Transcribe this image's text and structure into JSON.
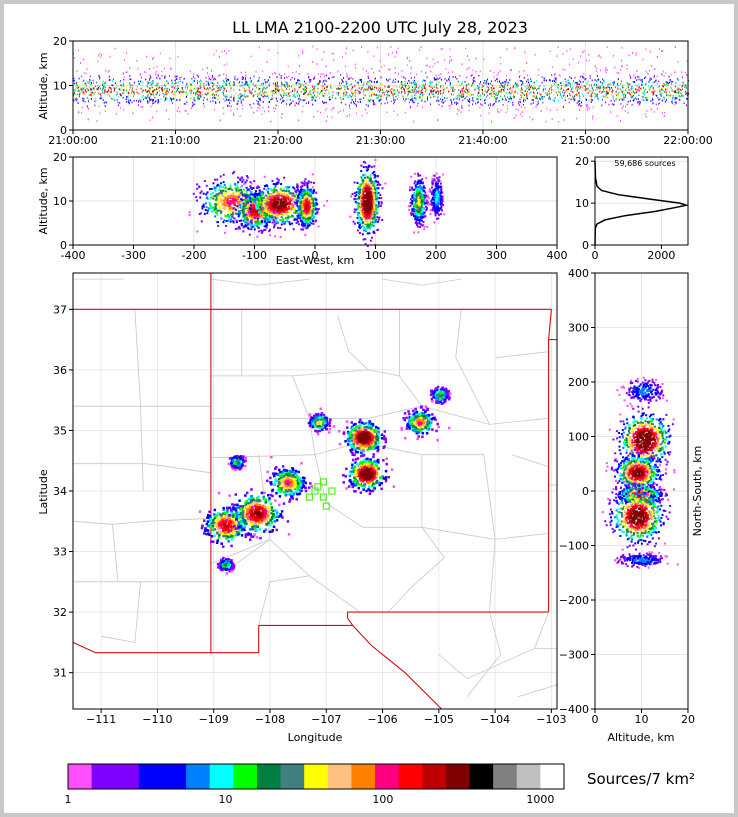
{
  "title": "LL LMA 2100-2200 UTC July 28, 2023",
  "time_panel": {
    "ylabel": "Altitude, km",
    "y_ticks": [
      "0",
      "10",
      "20"
    ],
    "x_ticks": [
      "21:00:00",
      "21:10:00",
      "21:20:00",
      "21:30:00",
      "21:40:00",
      "21:50:00",
      "22:00:00"
    ]
  },
  "ew_panel": {
    "ylabel": "Altitude, km",
    "xlabel": "East-West, km",
    "x_ticks": [
      "-400",
      "-300",
      "-200",
      "-100",
      "0",
      "100",
      "200",
      "300",
      "400"
    ],
    "y_ticks": [
      "0",
      "10",
      "20"
    ]
  },
  "hist_panel": {
    "sources_label": "59,686 sources",
    "x_ticks": [
      "0",
      "2000"
    ],
    "y_ticks": [
      "0",
      "10",
      "20"
    ]
  },
  "map_panel": {
    "xlabel": "Longitude",
    "ylabel": "Latitude",
    "x_ticks": [
      "−111",
      "−110",
      "−109",
      "−108",
      "−107",
      "−106",
      "−105",
      "−104",
      "−103"
    ],
    "y_ticks": [
      "31",
      "32",
      "33",
      "34",
      "35",
      "36",
      "37"
    ]
  },
  "ns_panel": {
    "xlabel": "Altitude, km",
    "ylabel": "North-South, km",
    "x_ticks": [
      "0",
      "10",
      "20"
    ],
    "y_ticks": [
      "−400",
      "−300",
      "−200",
      "−100",
      "0",
      "100",
      "200",
      "300",
      "400"
    ]
  },
  "colorbar": {
    "label": "Sources/7 km²",
    "ticks": [
      "1",
      "10",
      "100",
      "1000"
    ],
    "colors": [
      "#ff4dff",
      "#8000ff",
      "#8000ff",
      "#0000ff",
      "#0000ff",
      "#0080ff",
      "#00ffff",
      "#00ff00",
      "#008040",
      "#408080",
      "#ffff00",
      "#ffc080",
      "#ff8000",
      "#ff0080",
      "#ff0000",
      "#c00000",
      "#800000",
      "#000000",
      "#808080",
      "#c0c0c0",
      "#ffffff"
    ]
  },
  "chart_data": [
    {
      "type": "scatter",
      "name": "altitude-time",
      "x_range": [
        "21:00:00",
        "22:00:00"
      ],
      "ylim": [
        0,
        20
      ],
      "band_center_km": 9,
      "band_core_km": [
        6,
        12
      ],
      "band_extent_km": [
        2,
        19
      ]
    },
    {
      "type": "heatmap",
      "name": "east-west-altitude",
      "xlim": [
        -400,
        400
      ],
      "ylim": [
        0,
        20
      ],
      "cells": [
        {
          "x": -140,
          "z": 10,
          "sx": 25,
          "sz": 2.5,
          "w": 0.7
        },
        {
          "x": -100,
          "z": 8,
          "sx": 15,
          "sz": 2.0,
          "w": 0.8
        },
        {
          "x": -60,
          "z": 9.5,
          "sx": 22,
          "sz": 2.2,
          "w": 0.9
        },
        {
          "x": -15,
          "z": 9,
          "sx": 8,
          "sz": 2.2,
          "w": 0.8
        },
        {
          "x": 85,
          "z": 10,
          "sx": 9,
          "sz": 3.5,
          "w": 1.0
        },
        {
          "x": 170,
          "z": 10,
          "sx": 6,
          "sz": 2.5,
          "w": 0.55
        },
        {
          "x": 200,
          "z": 11,
          "sx": 5,
          "sz": 2.2,
          "w": 0.35
        }
      ]
    },
    {
      "type": "line",
      "name": "altitude-histogram",
      "xlim": [
        0,
        2800
      ],
      "ylim": [
        0,
        20
      ],
      "points": [
        [
          0,
          0
        ],
        [
          10,
          4
        ],
        [
          60,
          5
        ],
        [
          300,
          6
        ],
        [
          900,
          7
        ],
        [
          1800,
          8
        ],
        [
          2450,
          9
        ],
        [
          2750,
          9.5
        ],
        [
          2550,
          10
        ],
        [
          1600,
          11
        ],
        [
          700,
          12
        ],
        [
          200,
          13
        ],
        [
          60,
          14
        ],
        [
          15,
          16
        ],
        [
          0,
          20
        ]
      ]
    },
    {
      "type": "heatmap",
      "name": "plan-view-map",
      "xlim": [
        -111.5,
        -102.9
      ],
      "ylim": [
        30.4,
        37.6
      ],
      "cells": [
        {
          "lon": -108.8,
          "lat": 33.45,
          "s": 0.18,
          "w": 0.8
        },
        {
          "lon": -108.25,
          "lat": 33.65,
          "s": 0.2,
          "w": 0.85
        },
        {
          "lon": -107.7,
          "lat": 34.15,
          "s": 0.15,
          "w": 0.7
        },
        {
          "lon": -107.15,
          "lat": 35.15,
          "s": 0.08,
          "w": 0.6
        },
        {
          "lon": -106.35,
          "lat": 34.9,
          "s": 0.15,
          "w": 1.0
        },
        {
          "lon": -106.3,
          "lat": 34.3,
          "s": 0.15,
          "w": 1.0
        },
        {
          "lon": -105.35,
          "lat": 35.15,
          "s": 0.12,
          "w": 0.7
        },
        {
          "lon": -105.0,
          "lat": 35.6,
          "s": 0.07,
          "w": 0.5
        },
        {
          "lon": -108.6,
          "lat": 34.5,
          "s": 0.06,
          "w": 0.5
        },
        {
          "lon": -108.8,
          "lat": 32.8,
          "s": 0.06,
          "w": 0.45
        }
      ],
      "stations": [
        [
          -107.05,
          34.15
        ],
        [
          -107.2,
          34.0
        ],
        [
          -107.05,
          33.9
        ],
        [
          -106.9,
          34.0
        ],
        [
          -107.0,
          33.75
        ],
        [
          -107.3,
          33.9
        ],
        [
          -107.15,
          34.07
        ]
      ]
    },
    {
      "type": "heatmap",
      "name": "north-south-altitude",
      "xlim": [
        0,
        20
      ],
      "ylim": [
        -400,
        400
      ],
      "cells": [
        {
          "z": 10.5,
          "y": 95,
          "sz": 2.5,
          "sy": 22,
          "w": 1.0
        },
        {
          "z": 9,
          "y": 35,
          "sz": 2.2,
          "sy": 15,
          "w": 0.9
        },
        {
          "z": 9.5,
          "y": -5,
          "sz": 2.2,
          "sy": 8,
          "w": 0.8
        },
        {
          "z": 9,
          "y": -45,
          "sz": 2.5,
          "sy": 22,
          "w": 0.95
        },
        {
          "z": 10.5,
          "y": 185,
          "sz": 2.0,
          "sy": 10,
          "w": 0.3
        },
        {
          "z": 10,
          "y": -125,
          "sz": 2.5,
          "sy": 6,
          "w": 0.3
        }
      ]
    }
  ]
}
